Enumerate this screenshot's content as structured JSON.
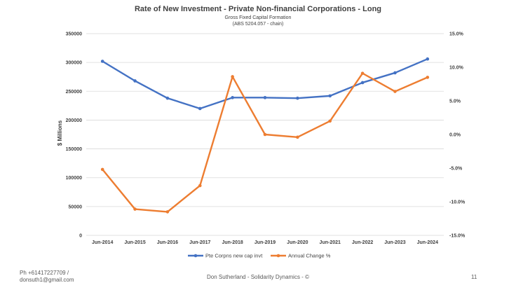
{
  "chart_data": {
    "type": "line",
    "title": "Rate of New Investment - Private Non-financial Corporations - Long",
    "subtitle": "Gross Fixed Capital Formation",
    "subtitle2": "(ABS 5204.057 - chain)",
    "ylabel": "$ Millions",
    "categories": [
      "Jun-2014",
      "Jun-2015",
      "Jun-2016",
      "Jun-2017",
      "Jun-2018",
      "Jun-2019",
      "Jun-2020",
      "Jun-2021",
      "Jun-2022",
      "Jun-2023",
      "Jun-2024"
    ],
    "y_left": {
      "min": 0,
      "max": 350000,
      "ticks": [
        "0",
        "50000",
        "100000",
        "150000",
        "200000",
        "250000",
        "300000",
        "350000"
      ]
    },
    "y_right": {
      "min": -15,
      "max": 15,
      "ticks": [
        "-15.0%",
        "-10.0%",
        "-5.0%",
        "0.0%",
        "5.0%",
        "10.0%",
        "15.0%"
      ]
    },
    "series": [
      {
        "name": "Pte Corpns new cap invt",
        "axis": "left",
        "color": "#4472C4",
        "values": [
          302000,
          268000,
          238000,
          220000,
          239000,
          239000,
          238000,
          242000,
          265000,
          282000,
          306000
        ]
      },
      {
        "name": "Annual Change %",
        "axis": "right",
        "color": "#ED7D31",
        "values": [
          -5.2,
          -11.1,
          -11.5,
          -7.6,
          8.6,
          0.0,
          -0.4,
          2.0,
          9.1,
          6.4,
          8.5
        ]
      }
    ],
    "grid": true,
    "legend_position": "bottom"
  },
  "footer": {
    "contact_phone": "Ph +61417227709 /",
    "contact_email": "donsuth1@gmail.com",
    "credit": "Don Sutherland - Solidarity Dynamics - ©",
    "page_number": "11"
  }
}
